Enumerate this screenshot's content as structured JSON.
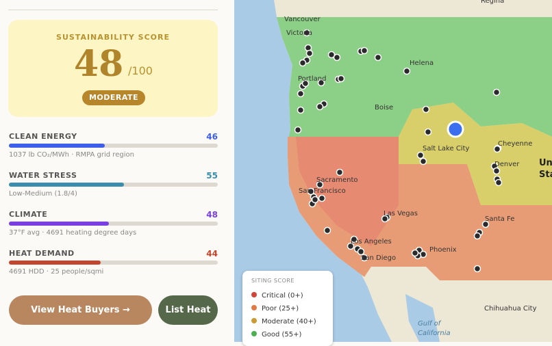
{
  "score_card": {
    "label": "SUSTAINABILITY SCORE",
    "score": 48,
    "suffix": "/100",
    "rating": "MODERATE"
  },
  "metrics": [
    {
      "name": "CLEAN ENERGY",
      "value": 46,
      "color": "#3d5ee8",
      "detail": "1037 lb CO₂/MWh · RMPA grid region"
    },
    {
      "name": "WATER STRESS",
      "value": 55,
      "color": "#3a8eab",
      "detail": "Low-Medium (1.8/4)"
    },
    {
      "name": "CLIMATE",
      "value": 48,
      "color": "#7a3fe0",
      "detail": "37°F avg · 4691 heating degree days"
    },
    {
      "name": "HEAT DEMAND",
      "value": 44,
      "color": "#c3452b",
      "detail": "4691 HDD · 25 people/sqmi"
    }
  ],
  "buttons": {
    "primary": "View Heat Buyers →",
    "secondary": "List Heat"
  },
  "map": {
    "places": [
      "Regina",
      "Vancouver",
      "Victoria",
      "Helena",
      "Portland",
      "Boise",
      "Salt Lake City",
      "Cheyenne",
      "Denver",
      "Unite",
      "State",
      "Sacramento",
      "San Francisco",
      "Las Vegas",
      "Los Angeles",
      "San Diego",
      "Phoenix",
      "Santa Fe",
      "Chihuahua City",
      "Gulf of",
      "California"
    ],
    "legend": {
      "title": "SITING SCORE",
      "items": [
        {
          "label": "Critical (0+)",
          "color": "#d0453a"
        },
        {
          "label": "Poor (25+)",
          "color": "#e07a45"
        },
        {
          "label": "Moderate (40+)",
          "color": "#c99a35"
        },
        {
          "label": "Good (55+)",
          "color": "#4caf50"
        }
      ]
    }
  }
}
